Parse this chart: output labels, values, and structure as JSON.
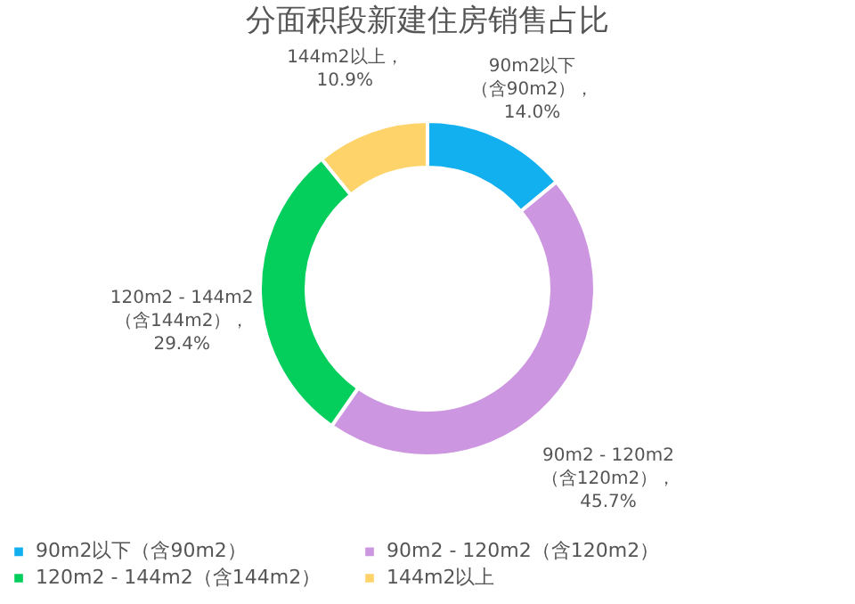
{
  "chart_data": {
    "type": "donut",
    "title": "分面积段新建住房销售占比",
    "categories": [
      "90m2以下（含90m2）",
      "90m2 - 120m2（含120m2）",
      "120m2 - 144m2（含144m2）",
      "144m2以上"
    ],
    "values": [
      14.0,
      45.7,
      29.4,
      10.9
    ],
    "colors": [
      "#13b0f0",
      "#cd96e0",
      "#05cf5c",
      "#fed36a"
    ],
    "value_labels": [
      "90m2以下（含90m2），14.0%",
      "90m2 - 120m2（含120m2），45.7%",
      "120m2 - 144m2（含144m2），29.4%",
      "144m2以上，10.9%"
    ],
    "legend": "bottom"
  }
}
